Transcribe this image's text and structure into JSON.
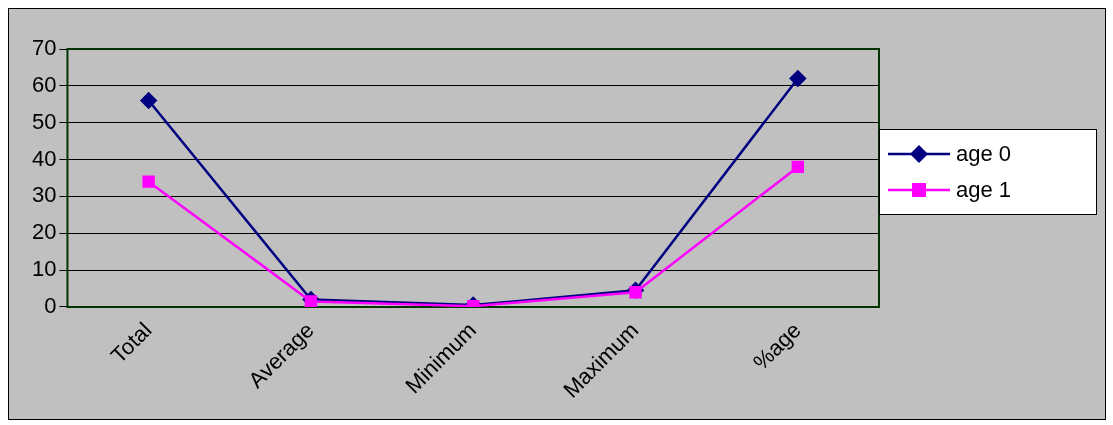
{
  "chart_data": {
    "type": "line",
    "categories": [
      "Total",
      "Average",
      "Minimum",
      "Maximum",
      "%age"
    ],
    "series": [
      {
        "name": "age 0",
        "color": "#000080",
        "values": [
          56,
          2,
          0.5,
          4.5,
          62
        ],
        "marker": "diamond"
      },
      {
        "name": "age 1",
        "color": "#ff00ff",
        "values": [
          34,
          1.5,
          0.2,
          4,
          38
        ],
        "marker": "square"
      }
    ],
    "ylim": [
      0,
      70
    ],
    "yticks": [
      0,
      10,
      20,
      30,
      40,
      50,
      60,
      70
    ],
    "grid": "y",
    "legend": "right",
    "line_style": "solid"
  }
}
